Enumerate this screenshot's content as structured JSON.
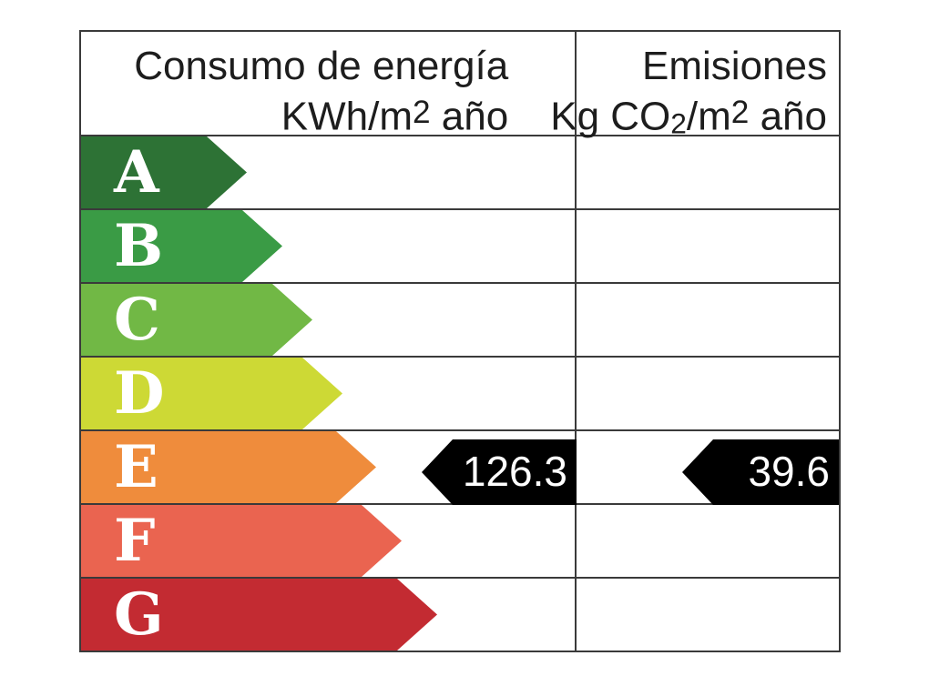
{
  "header": {
    "consumption": {
      "title": "Consumo de energía",
      "unit_prefix": "KWh/m",
      "unit_sup": "2",
      "unit_suffix": " año"
    },
    "emissions": {
      "title": "Emisiones",
      "unit_prefix": "Kg CO",
      "unit_sub": "2",
      "unit_mid": "/m",
      "unit_sup": "2",
      "unit_suffix": " año"
    }
  },
  "scale": [
    {
      "letter": "A",
      "color": "#2d7235",
      "arrow_width": 182
    },
    {
      "letter": "B",
      "color": "#3a9b45",
      "arrow_width": 221
    },
    {
      "letter": "C",
      "color": "#71b845",
      "arrow_width": 254
    },
    {
      "letter": "D",
      "color": "#cdd935",
      "arrow_width": 287
    },
    {
      "letter": "E",
      "color": "#ef8c3c",
      "arrow_width": 324
    },
    {
      "letter": "F",
      "color": "#ea6450",
      "arrow_width": 352
    },
    {
      "letter": "G",
      "color": "#c32b32",
      "arrow_width": 391
    }
  ],
  "result": {
    "rating": "E",
    "consumption_value": "126.3",
    "emissions_value": "39.6",
    "marker_color": "#000000",
    "marker_text_color": "#ffffff"
  },
  "chart_data": {
    "type": "bar",
    "subtype": "energy-efficiency-rating-label",
    "title": "",
    "categories": [
      "A",
      "B",
      "C",
      "D",
      "E",
      "F",
      "G"
    ],
    "band_colors": [
      "#2d7235",
      "#3a9b45",
      "#71b845",
      "#cdd935",
      "#ef8c3c",
      "#ea6450",
      "#c32b32"
    ],
    "columns": [
      {
        "header": "Consumo de energía KWh/m2 año",
        "value": 126.3,
        "rating": "E"
      },
      {
        "header": "Emisiones Kg CO2/m2 año",
        "value": 39.6,
        "rating": "E"
      }
    ],
    "legend_position": "none",
    "grid": false
  }
}
